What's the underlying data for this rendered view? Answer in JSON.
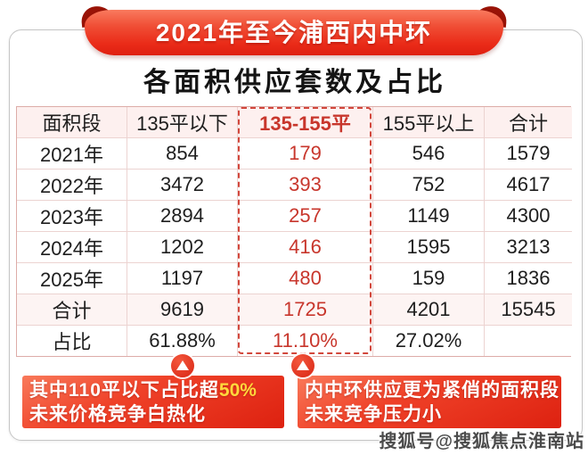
{
  "banner": {
    "title": "2021年至今浦西内中环"
  },
  "subtitle": "各面积供应套数及占比",
  "chart_data": {
    "type": "table",
    "title": "2021年至今浦西内中环各面积供应套数及占比",
    "columns": [
      "面积段",
      "135平以下",
      "135-155平",
      "155平以上",
      "合计"
    ],
    "rows": [
      [
        "2021年",
        "854",
        "179",
        "546",
        "1579"
      ],
      [
        "2022年",
        "3472",
        "393",
        "752",
        "4617"
      ],
      [
        "2023年",
        "2894",
        "257",
        "1149",
        "4300"
      ],
      [
        "2024年",
        "1202",
        "416",
        "1595",
        "3213"
      ],
      [
        "2025年",
        "1197",
        "480",
        "159",
        "1836"
      ],
      [
        "合计",
        "9619",
        "1725",
        "4201",
        "15545"
      ],
      [
        "占比",
        "61.88%",
        "11.10%",
        "27.02%",
        ""
      ]
    ],
    "highlighted_column": "135-155平",
    "layout_hints": {
      "highlight_style": "red dashed outline",
      "highlight_text_color": "#c8362c"
    }
  },
  "markers": {
    "icon_name": "triangle-up-icon",
    "color": "#e03420",
    "points_to": [
      "61.88%",
      "11.10%"
    ]
  },
  "callouts": {
    "left": {
      "line1_prefix": "其中110平以下占比超",
      "line1_highlight": "50%",
      "line2": "未来价格竞争白热化"
    },
    "right": {
      "line1": "内中环供应更为紧俏的面积段",
      "line2": "未来竞争压力小"
    }
  },
  "watermark": "搜狐号@搜狐焦点淮南站",
  "accent_colors": {
    "ribbon_red": "#ea2b18",
    "dark_curl_red": "#991307",
    "table_red_text": "#c8362c",
    "dashed_border": "#d2473c",
    "callout_gradient_top": "#f9795a",
    "callout_gradient_bottom": "#dd2110",
    "highlight_yellow": "#ffd83c",
    "header_bg": "#fdf0ef",
    "grid_line": "#ecd3d1"
  }
}
